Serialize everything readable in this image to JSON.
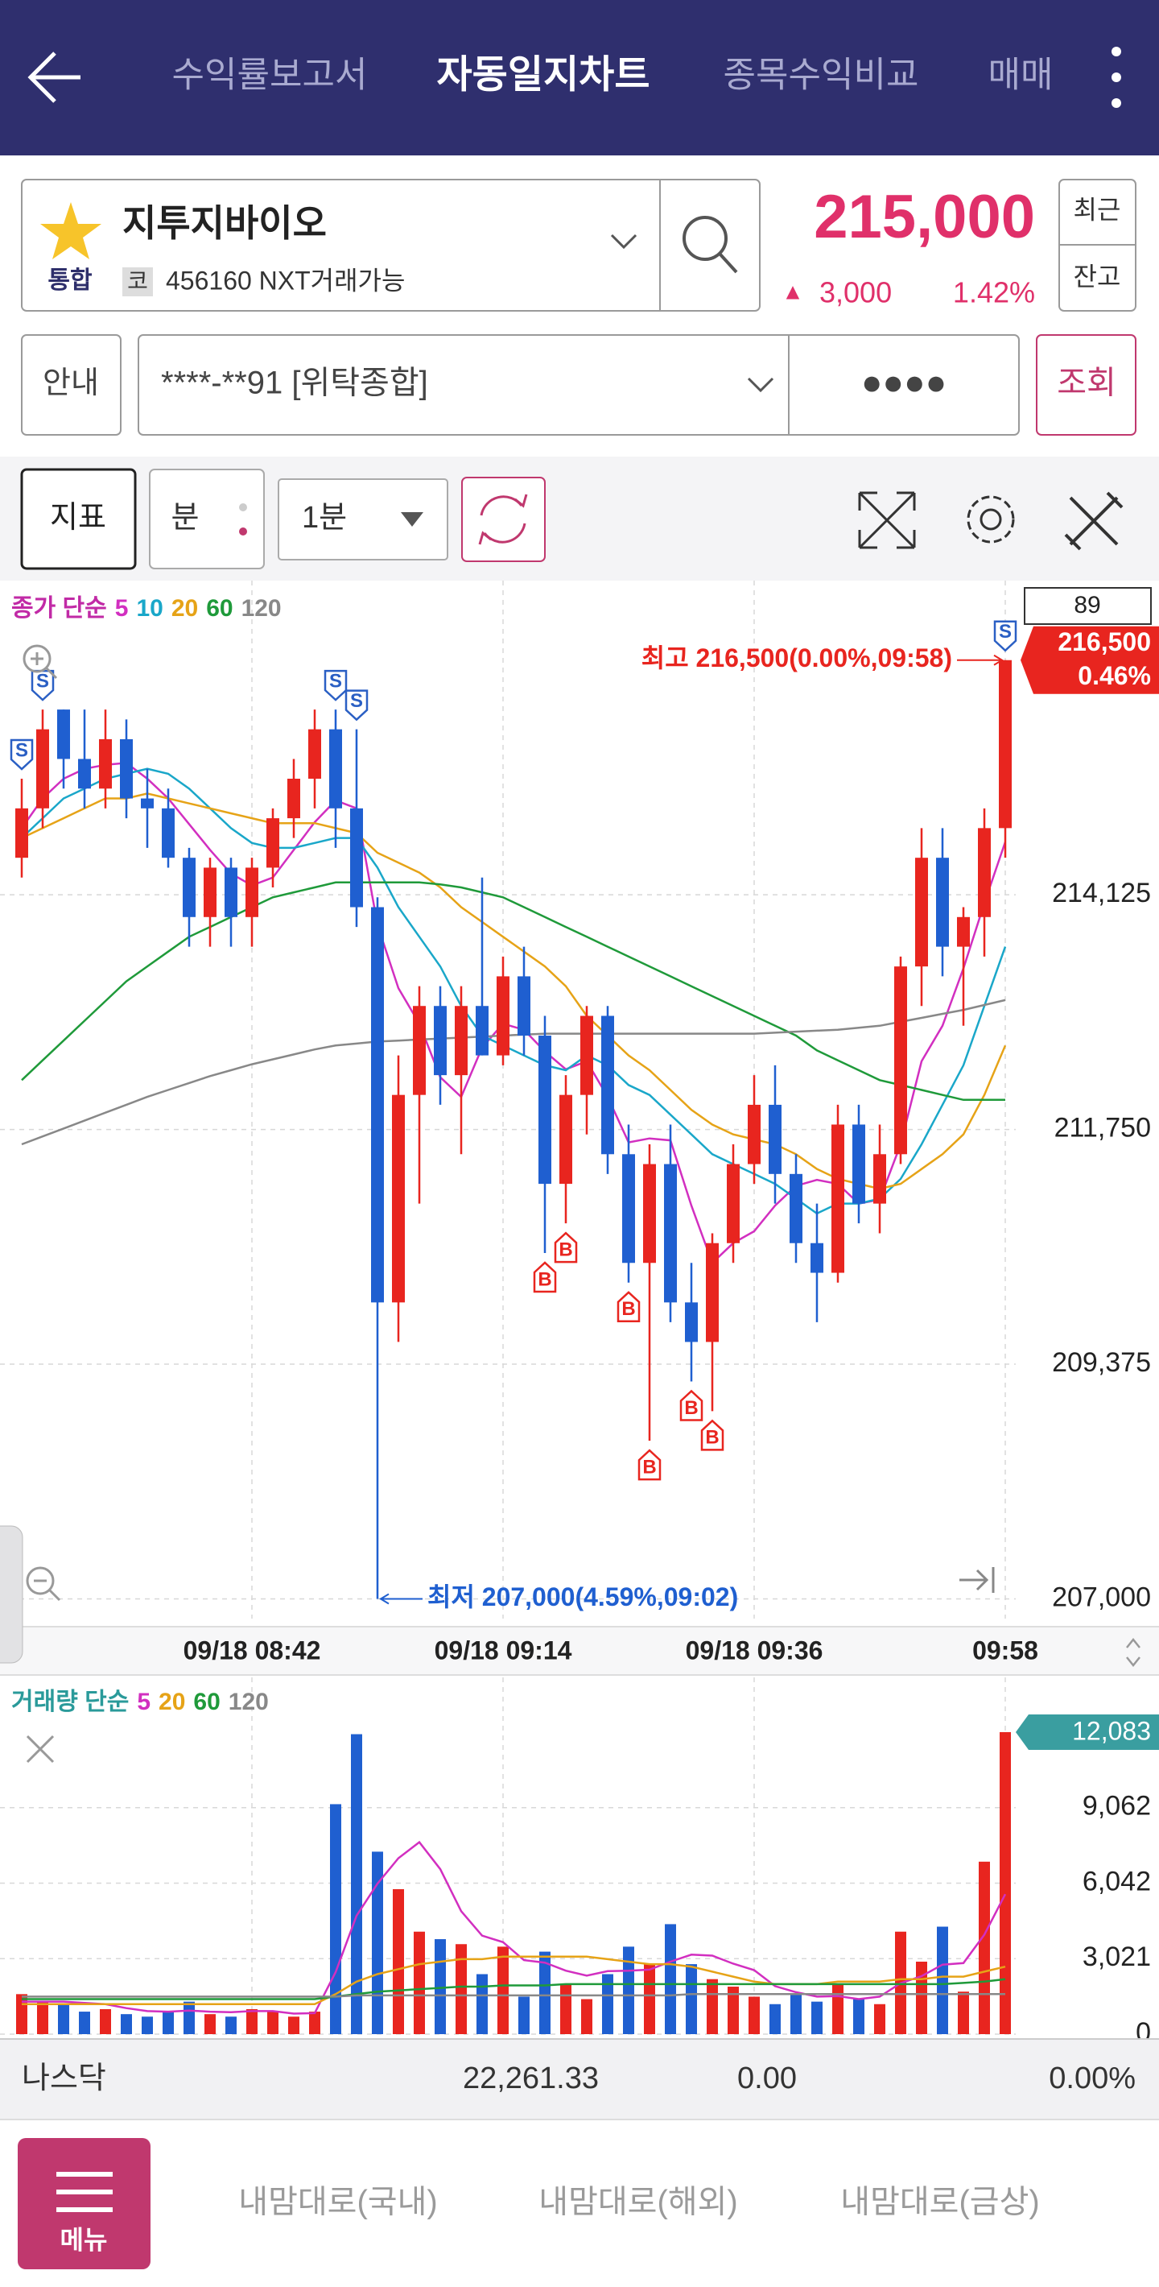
{
  "header": {
    "tabs": [
      "수익률보고서",
      "자동일지차트",
      "종목수익비교",
      "매매"
    ]
  },
  "stock": {
    "name": "지투지바이오",
    "market": "통합",
    "badge": "코",
    "code": "456160 NXT거래가능",
    "price": "215,000",
    "arrow": "▲",
    "change": "3,000",
    "change_pct": "1.42%",
    "side_buttons": [
      "최근",
      "잔고"
    ]
  },
  "account": {
    "info": "안내",
    "number": "****-**91 [위탁종합]",
    "password": "●●●●",
    "query": "조회"
  },
  "toolbar": {
    "indicator": "지표",
    "unit": "분",
    "interval": "1분"
  },
  "chart_data": [
    {
      "type": "candlestick",
      "legend_prefix": "종가 단순",
      "count_label": "89",
      "up_color": "#e8251f",
      "down_color": "#1f5fd0",
      "categories": [
        null,
        null,
        null,
        null,
        null,
        null,
        null,
        null,
        null,
        null,
        null,
        "09/18 08:42",
        null,
        null,
        null,
        null,
        null,
        null,
        null,
        null,
        null,
        null,
        null,
        "09/18 09:14",
        null,
        null,
        null,
        null,
        null,
        null,
        null,
        null,
        null,
        null,
        null,
        "09/18 09:36",
        null,
        null,
        null,
        null,
        null,
        null,
        null,
        null,
        null,
        null,
        null,
        "09:58"
      ],
      "candles": {
        "open": [
          214500,
          215000,
          216000,
          215500,
          215200,
          215700,
          215100,
          215000,
          214500,
          213900,
          214400,
          213900,
          214400,
          214900,
          215300,
          215800,
          215000,
          214000,
          210000,
          212100,
          213000,
          212300,
          213000,
          212500,
          213300,
          212700,
          211200,
          212100,
          212900,
          211500,
          210400,
          211400,
          210000,
          209600,
          210600,
          211400,
          212000,
          211300,
          210600,
          210300,
          211800,
          211000,
          211500,
          213400,
          214500,
          213600,
          213900,
          214800
        ],
        "high": [
          215300,
          216000,
          216000,
          216000,
          216000,
          215900,
          215400,
          215200,
          214600,
          214500,
          214500,
          214500,
          215000,
          215500,
          216000,
          216000,
          215800,
          214100,
          212500,
          213200,
          213200,
          213200,
          214300,
          213500,
          213600,
          212900,
          212300,
          213000,
          213000,
          211800,
          211600,
          211800,
          210400,
          210700,
          211600,
          212300,
          212400,
          211500,
          211000,
          212000,
          212000,
          211800,
          213500,
          214800,
          214800,
          214000,
          215000,
          216500
        ],
        "low": [
          214300,
          214800,
          215200,
          215000,
          215000,
          214900,
          214600,
          214400,
          213600,
          213600,
          213600,
          213600,
          214200,
          214700,
          215000,
          214600,
          213800,
          207000,
          209600,
          211000,
          212000,
          211500,
          212500,
          212400,
          212500,
          210500,
          210800,
          211700,
          211300,
          210200,
          208600,
          209800,
          209200,
          208900,
          210400,
          211200,
          211000,
          210400,
          209800,
          210200,
          210800,
          210700,
          211400,
          213000,
          213300,
          212800,
          213500,
          214500
        ],
        "close": [
          215000,
          215800,
          215500,
          215200,
          215700,
          215100,
          215000,
          214500,
          213900,
          214400,
          213900,
          214400,
          214900,
          215300,
          215800,
          215000,
          214000,
          210000,
          212100,
          213000,
          212300,
          213000,
          212500,
          213300,
          212700,
          211200,
          212100,
          212900,
          211500,
          210400,
          211400,
          210000,
          209600,
          210600,
          211400,
          212000,
          211300,
          210600,
          210300,
          211800,
          211000,
          211500,
          213400,
          214500,
          213600,
          213900,
          214800,
          216500
        ]
      },
      "series": [
        {
          "name": "5",
          "color": "#d22fc0",
          "values": [
            214800,
            215100,
            215300,
            215400,
            215440,
            215460,
            215300,
            215100,
            214840,
            214580,
            214340,
            214220,
            214300,
            214580,
            214860,
            215080,
            215000,
            213820,
            213180,
            212820,
            212280,
            212080,
            212580,
            212820,
            212760,
            212540,
            212360,
            212440,
            212080,
            211620,
            211660,
            211640,
            210980,
            210400,
            210600,
            210720,
            210980,
            211180,
            211240,
            211200,
            211000,
            211040,
            211600,
            212440,
            212800,
            213380,
            214040,
            214660
          ]
        },
        {
          "name": "10",
          "color": "#1aa7c9",
          "values": [
            214700,
            214900,
            215100,
            215200,
            215300,
            215350,
            215400,
            215350,
            215200,
            215000,
            214800,
            214650,
            214600,
            214600,
            214650,
            214700,
            214700,
            214400,
            214000,
            213700,
            213400,
            213000,
            212700,
            212600,
            212500,
            212400,
            212350,
            212500,
            212400,
            212200,
            212100,
            211900,
            211700,
            211500,
            211400,
            211300,
            211200,
            211050,
            210900,
            211000,
            211000,
            211050,
            211250,
            211600,
            212000,
            212400,
            213000,
            213600
          ]
        },
        {
          "name": "20",
          "color": "#e6a317",
          "values": [
            214700,
            214800,
            214900,
            215000,
            215100,
            215100,
            215150,
            215100,
            215050,
            215000,
            214950,
            214900,
            214850,
            214850,
            214850,
            214800,
            214750,
            214550,
            214450,
            214350,
            214200,
            214000,
            213850,
            213700,
            213550,
            213400,
            213200,
            212900,
            212700,
            212500,
            212350,
            212150,
            211950,
            211800,
            211700,
            211650,
            211600,
            211500,
            211350,
            211250,
            211200,
            211150,
            211200,
            211350,
            211500,
            211700,
            212100,
            212600
          ]
        },
        {
          "name": "60",
          "color": "#1f9a3a",
          "values": [
            212250,
            212450,
            212650,
            212850,
            213050,
            213250,
            213400,
            213550,
            213700,
            213800,
            213900,
            214000,
            214100,
            214150,
            214200,
            214250,
            214250,
            214250,
            214250,
            214250,
            214230,
            214200,
            214150,
            214100,
            214000,
            213900,
            213800,
            213700,
            213600,
            213500,
            213400,
            213300,
            213200,
            213100,
            213000,
            212900,
            212800,
            212700,
            212550,
            212450,
            212350,
            212250,
            212200,
            212150,
            212100,
            212050,
            212050,
            212050
          ]
        },
        {
          "name": "120",
          "color": "#888888",
          "values": [
            211600,
            211680,
            211760,
            211840,
            211920,
            212000,
            212080,
            212150,
            212220,
            212290,
            212350,
            212410,
            212460,
            212510,
            212560,
            212600,
            212620,
            212640,
            212650,
            212660,
            212670,
            212680,
            212690,
            212700,
            212710,
            212720,
            212720,
            212720,
            212720,
            212720,
            212720,
            212720,
            212720,
            212720,
            212720,
            212720,
            212730,
            212740,
            212750,
            212760,
            212780,
            212800,
            212840,
            212880,
            212920,
            212960,
            213010,
            213060
          ]
        }
      ],
      "signals": [
        "S",
        "S",
        null,
        null,
        null,
        null,
        null,
        null,
        null,
        null,
        null,
        null,
        null,
        null,
        null,
        "S",
        "S",
        null,
        null,
        null,
        null,
        null,
        null,
        null,
        null,
        "B",
        "B",
        null,
        null,
        "B",
        "B",
        null,
        "B",
        "B",
        null,
        null,
        null,
        null,
        null,
        null,
        null,
        null,
        null,
        null,
        null,
        null,
        null,
        "S"
      ],
      "signal_colors": {
        "S": "#2a5fc4",
        "B": "#e8251f"
      },
      "signal_side": {
        "S": "above",
        "B": "below"
      },
      "ylim": [
        206800,
        217150
      ],
      "yticks": [
        {
          "value": 214125,
          "label": "214,125"
        },
        {
          "value": 211750,
          "label": "211,750"
        },
        {
          "value": 209375,
          "label": "209,375"
        },
        {
          "value": 207000,
          "label": "207,000"
        }
      ],
      "high_note": "최고 216,500(0.00%,09:58)",
      "low_note": "최저 207,000(4.59%,09:02)",
      "last_tag": {
        "value_label": "216,500",
        "change": "0.46%",
        "color": "#e8251f"
      }
    },
    {
      "type": "bar",
      "legend_prefix": "거래량 단순",
      "values": [
        1600,
        1300,
        1200,
        900,
        1000,
        800,
        700,
        900,
        1300,
        800,
        700,
        1000,
        900,
        700,
        900,
        9200,
        12000,
        7300,
        5800,
        4100,
        3800,
        3600,
        2400,
        3500,
        1500,
        3300,
        2000,
        1400,
        2400,
        3500,
        2800,
        4400,
        2800,
        2200,
        1900,
        1500,
        1200,
        1600,
        1300,
        2000,
        1400,
        1200,
        4100,
        2900,
        4300,
        1700,
        6900,
        12083
      ],
      "value_labels": [
        null,
        null,
        null,
        null,
        null,
        null,
        null,
        null,
        null,
        null,
        null,
        null,
        null,
        null,
        null,
        null,
        null,
        null,
        null,
        null,
        null,
        null,
        null,
        null,
        null,
        null,
        null,
        null,
        null,
        null,
        null,
        null,
        null,
        null,
        null,
        null,
        null,
        null,
        null,
        null,
        null,
        null,
        null,
        null,
        null,
        null,
        null,
        "12,083"
      ],
      "tag_color": "#3a9ea0",
      "series": [
        {
          "name": "5",
          "color": "#d22fc0",
          "values": [
            1300,
            1300,
            1300,
            1250,
            1200,
            1040,
            920,
            900,
            940,
            900,
            880,
            920,
            920,
            820,
            840,
            2480,
            4740,
            6020,
            7040,
            7680,
            6600,
            4920,
            3940,
            3680,
            2960,
            2860,
            2540,
            2340,
            2520,
            2540,
            2580,
            2900,
            3180,
            3140,
            2820,
            2560,
            1920,
            1680,
            1500,
            1520,
            1400,
            1500,
            2040,
            2320,
            2780,
            2840,
            3980,
            5600
          ]
        },
        {
          "name": "20",
          "color": "#e6a317",
          "values": [
            1200,
            1200,
            1200,
            1200,
            1200,
            1200,
            1200,
            1200,
            1200,
            1200,
            1200,
            1200,
            1200,
            1200,
            1200,
            1600,
            2100,
            2400,
            2600,
            2800,
            2900,
            3000,
            3000,
            3100,
            3100,
            3100,
            3100,
            3100,
            3000,
            2900,
            2800,
            2800,
            2700,
            2500,
            2300,
            2100,
            2000,
            2000,
            2000,
            2100,
            2100,
            2100,
            2200,
            2200,
            2300,
            2300,
            2500,
            2700
          ]
        },
        {
          "name": "60",
          "color": "#1f9a3a",
          "values": [
            1400,
            1400,
            1400,
            1400,
            1400,
            1400,
            1400,
            1400,
            1400,
            1400,
            1400,
            1400,
            1400,
            1400,
            1400,
            1500,
            1600,
            1700,
            1750,
            1800,
            1850,
            1900,
            1900,
            1950,
            1950,
            1950,
            2000,
            2000,
            2000,
            2000,
            2000,
            2000,
            2000,
            2000,
            2000,
            2000,
            2000,
            2000,
            2000,
            2000,
            2000,
            2000,
            2000,
            2000,
            2000,
            2050,
            2100,
            2200
          ]
        },
        {
          "name": "120",
          "color": "#888888",
          "values": [
            1500,
            1500,
            1500,
            1500,
            1500,
            1500,
            1500,
            1500,
            1500,
            1500,
            1500,
            1500,
            1500,
            1500,
            1500,
            1500,
            1550,
            1550,
            1550,
            1550,
            1550,
            1550,
            1550,
            1550,
            1550,
            1550,
            1550,
            1550,
            1550,
            1550,
            1550,
            1550,
            1600,
            1600,
            1600,
            1600,
            1600,
            1600,
            1600,
            1600,
            1600,
            1600,
            1600,
            1600,
            1600,
            1600,
            1600,
            1600
          ]
        }
      ],
      "ylim": [
        0,
        12500
      ],
      "yticks": [
        0,
        {
          "value": 3021,
          "label": "3,021"
        },
        {
          "value": 6042,
          "label": "6,042"
        },
        {
          "value": 9062,
          "label": "9,062"
        }
      ]
    }
  ],
  "index_bar": {
    "name": "나스닥",
    "value": "22,261.33",
    "change": "0.00",
    "change_pct": "0.00%"
  },
  "bottom_nav": {
    "menu": "메뉴",
    "tabs": [
      "내맘대로(국내)",
      "내맘대로(해외)",
      "내맘대로(금상)"
    ]
  }
}
